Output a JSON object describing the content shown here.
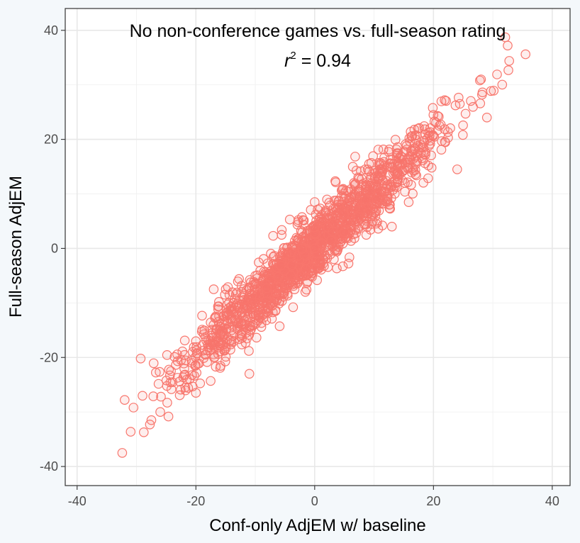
{
  "chart_data": {
    "type": "scatter",
    "title": "No non-conference games vs. full-season rating",
    "annotation": {
      "prefix": "r",
      "superscript": "2",
      "suffix": " = 0.94"
    },
    "xlabel": "Conf-only AdjEM w/ baseline",
    "ylabel": "Full-season AdjEM",
    "xlim": [
      -42,
      43
    ],
    "ylim": [
      -43.5,
      44
    ],
    "xticks": [
      -40,
      -20,
      0,
      20,
      40
    ],
    "yticks": [
      -40,
      -20,
      0,
      20,
      40
    ],
    "grid": true,
    "marker": {
      "shape": "open-circle",
      "color": "#f8766d"
    },
    "series": [
      {
        "points_sample": [
          [
            -32.4,
            -37.5
          ],
          [
            -32.0,
            -27.8
          ],
          [
            -30.5,
            -29.2
          ],
          [
            -29.3,
            -20.2
          ],
          [
            -27.5,
            -31.5
          ],
          [
            -26.0,
            -30.0
          ],
          [
            -24.2,
            -22.5
          ],
          [
            -22.5,
            -20.5
          ],
          [
            -20.0,
            -26.5
          ],
          [
            -17.0,
            -7.5
          ],
          [
            -15.0,
            -18.0
          ],
          [
            -11.0,
            -23.0
          ],
          [
            -7.0,
            2.3
          ],
          [
            -4.0,
            -5.0
          ],
          [
            0.0,
            0.0
          ],
          [
            0.0,
            8.5
          ],
          [
            5.0,
            3.0
          ],
          [
            8.5,
            14.5
          ],
          [
            13.0,
            4.0
          ],
          [
            17.0,
            20.0
          ],
          [
            20.0,
            24.5
          ],
          [
            24.0,
            14.5
          ],
          [
            28.0,
            31.0
          ],
          [
            29.0,
            24.0
          ],
          [
            32.5,
            37.2
          ],
          [
            35.5,
            35.6
          ]
        ],
        "n_points": 1500,
        "r_squared": 0.94
      }
    ]
  }
}
